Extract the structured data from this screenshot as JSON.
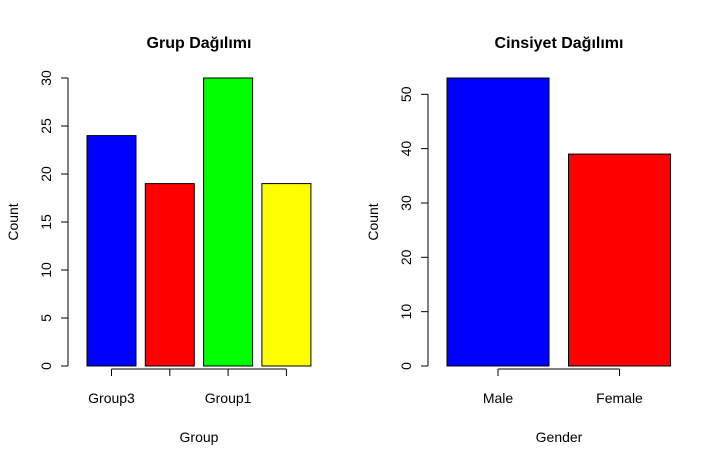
{
  "chart_data": [
    {
      "type": "bar",
      "title": "Grup Dağılımı",
      "xlabel": "Group",
      "ylabel": "Count",
      "categories": [
        "Group3",
        "",
        "Group1",
        ""
      ],
      "values": [
        24,
        19,
        30,
        19
      ],
      "colors": [
        "#0000ff",
        "#ff0000",
        "#00ff00",
        "#ffff00"
      ],
      "yticks": [
        0,
        5,
        10,
        15,
        20,
        25,
        30
      ],
      "ylim": [
        0,
        30
      ],
      "grid": false,
      "legend": "none"
    },
    {
      "type": "bar",
      "title": "Cinsiyet Dağılımı",
      "xlabel": "Gender",
      "ylabel": "Count",
      "categories": [
        "Male",
        "Female"
      ],
      "values": [
        53,
        39
      ],
      "colors": [
        "#0000ff",
        "#ff0000"
      ],
      "yticks": [
        0,
        10,
        20,
        30,
        40,
        50
      ],
      "ylim": [
        0,
        53
      ],
      "grid": false,
      "legend": "none"
    }
  ]
}
